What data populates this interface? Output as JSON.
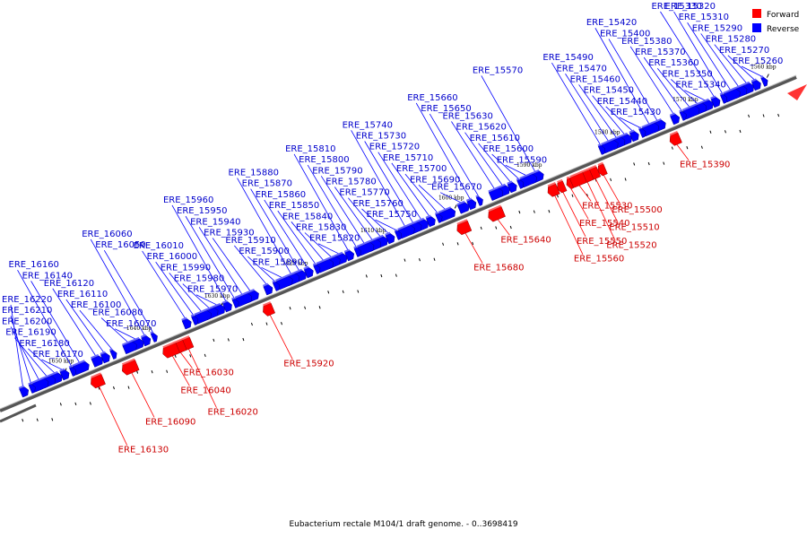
{
  "legend": [
    {
      "label": "Forward",
      "color": "#ff0000"
    },
    {
      "label": "Reverse",
      "color": "#0000ff"
    }
  ],
  "caption": "Eubacterium rectale M104/1 draft genome. - 0..3698419",
  "ticks": [
    {
      "label": "1560 kbp",
      "pos": 1560
    },
    {
      "label": "1570 kbp",
      "pos": 1570
    },
    {
      "label": "1580 kbp",
      "pos": 1580
    },
    {
      "label": "1590 kbp",
      "pos": 1590
    },
    {
      "label": "1600 kbp",
      "pos": 1600
    },
    {
      "label": "1610 kbp",
      "pos": 1610
    },
    {
      "label": "1620 kbp",
      "pos": 1620
    },
    {
      "label": "1630 kbp",
      "pos": 1630
    },
    {
      "label": "1640 kbp",
      "pos": 1640
    },
    {
      "label": "1650 kbp",
      "pos": 1650
    }
  ],
  "genes": [
    {
      "name": "ERE_15260",
      "strand": "reverse"
    },
    {
      "name": "ERE_15270",
      "strand": "reverse"
    },
    {
      "name": "ERE_15280",
      "strand": "reverse"
    },
    {
      "name": "ERE_15290",
      "strand": "reverse"
    },
    {
      "name": "ERE_15310",
      "strand": "reverse"
    },
    {
      "name": "ERE_15320",
      "strand": "reverse"
    },
    {
      "name": "ERE_15330",
      "strand": "reverse"
    },
    {
      "name": "ERE_15340",
      "strand": "reverse"
    },
    {
      "name": "ERE_15350",
      "strand": "reverse"
    },
    {
      "name": "ERE_15360",
      "strand": "reverse"
    },
    {
      "name": "ERE_15370",
      "strand": "reverse"
    },
    {
      "name": "ERE_15380",
      "strand": "reverse"
    },
    {
      "name": "ERE_15390",
      "strand": "forward"
    },
    {
      "name": "ERE_15400",
      "strand": "reverse"
    },
    {
      "name": "ERE_15420",
      "strand": "reverse"
    },
    {
      "name": "ERE_15430",
      "strand": "reverse"
    },
    {
      "name": "ERE_15440",
      "strand": "reverse"
    },
    {
      "name": "ERE_15450",
      "strand": "reverse"
    },
    {
      "name": "ERE_15460",
      "strand": "reverse"
    },
    {
      "name": "ERE_15470",
      "strand": "reverse"
    },
    {
      "name": "ERE_15490",
      "strand": "reverse"
    },
    {
      "name": "ERE_15500",
      "strand": "forward"
    },
    {
      "name": "ERE_15510",
      "strand": "forward"
    },
    {
      "name": "ERE_15520",
      "strand": "forward"
    },
    {
      "name": "ERE_15530",
      "strand": "forward"
    },
    {
      "name": "ERE_15540",
      "strand": "forward"
    },
    {
      "name": "ERE_15550",
      "strand": "forward"
    },
    {
      "name": "ERE_15560",
      "strand": "forward"
    },
    {
      "name": "ERE_15570",
      "strand": "reverse"
    },
    {
      "name": "ERE_15590",
      "strand": "reverse"
    },
    {
      "name": "ERE_15600",
      "strand": "reverse"
    },
    {
      "name": "ERE_15610",
      "strand": "reverse"
    },
    {
      "name": "ERE_15620",
      "strand": "reverse"
    },
    {
      "name": "ERE_15630",
      "strand": "reverse"
    },
    {
      "name": "ERE_15640",
      "strand": "forward"
    },
    {
      "name": "ERE_15650",
      "strand": "reverse"
    },
    {
      "name": "ERE_15660",
      "strand": "reverse"
    },
    {
      "name": "ERE_15670",
      "strand": "reverse"
    },
    {
      "name": "ERE_15680",
      "strand": "forward"
    },
    {
      "name": "ERE_15690",
      "strand": "reverse"
    },
    {
      "name": "ERE_15700",
      "strand": "reverse"
    },
    {
      "name": "ERE_15710",
      "strand": "reverse"
    },
    {
      "name": "ERE_15720",
      "strand": "reverse"
    },
    {
      "name": "ERE_15730",
      "strand": "reverse"
    },
    {
      "name": "ERE_15740",
      "strand": "reverse"
    },
    {
      "name": "ERE_15750",
      "strand": "reverse"
    },
    {
      "name": "ERE_15760",
      "strand": "reverse"
    },
    {
      "name": "ERE_15770",
      "strand": "reverse"
    },
    {
      "name": "ERE_15780",
      "strand": "reverse"
    },
    {
      "name": "ERE_15790",
      "strand": "reverse"
    },
    {
      "name": "ERE_15800",
      "strand": "reverse"
    },
    {
      "name": "ERE_15810",
      "strand": "reverse"
    },
    {
      "name": "ERE_15820",
      "strand": "reverse"
    },
    {
      "name": "ERE_15830",
      "strand": "reverse"
    },
    {
      "name": "ERE_15840",
      "strand": "reverse"
    },
    {
      "name": "ERE_15850",
      "strand": "reverse"
    },
    {
      "name": "ERE_15860",
      "strand": "reverse"
    },
    {
      "name": "ERE_15870",
      "strand": "reverse"
    },
    {
      "name": "ERE_15880",
      "strand": "reverse"
    },
    {
      "name": "ERE_15890",
      "strand": "reverse"
    },
    {
      "name": "ERE_15900",
      "strand": "reverse"
    },
    {
      "name": "ERE_15910",
      "strand": "reverse"
    },
    {
      "name": "ERE_15920",
      "strand": "forward"
    },
    {
      "name": "ERE_15930",
      "strand": "reverse"
    },
    {
      "name": "ERE_15940",
      "strand": "reverse"
    },
    {
      "name": "ERE_15950",
      "strand": "reverse"
    },
    {
      "name": "ERE_15960",
      "strand": "reverse"
    },
    {
      "name": "ERE_15970",
      "strand": "reverse"
    },
    {
      "name": "ERE_15980",
      "strand": "reverse"
    },
    {
      "name": "ERE_15990",
      "strand": "reverse"
    },
    {
      "name": "ERE_16000",
      "strand": "reverse"
    },
    {
      "name": "ERE_16010",
      "strand": "reverse"
    },
    {
      "name": "ERE_16020",
      "strand": "forward"
    },
    {
      "name": "ERE_16030",
      "strand": "forward"
    },
    {
      "name": "ERE_16040",
      "strand": "forward"
    },
    {
      "name": "ERE_16050",
      "strand": "reverse"
    },
    {
      "name": "ERE_16060",
      "strand": "reverse"
    },
    {
      "name": "ERE_16070",
      "strand": "reverse"
    },
    {
      "name": "ERE_16080",
      "strand": "reverse"
    },
    {
      "name": "ERE_16090",
      "strand": "forward"
    },
    {
      "name": "ERE_16100",
      "strand": "reverse"
    },
    {
      "name": "ERE_16110",
      "strand": "reverse"
    },
    {
      "name": "ERE_16120",
      "strand": "reverse"
    },
    {
      "name": "ERE_16130",
      "strand": "forward"
    },
    {
      "name": "ERE_16140",
      "strand": "reverse"
    },
    {
      "name": "ERE_16160",
      "strand": "reverse"
    },
    {
      "name": "ERE_16170",
      "strand": "reverse"
    },
    {
      "name": "ERE_16180",
      "strand": "reverse"
    },
    {
      "name": "ERE_16190",
      "strand": "reverse"
    },
    {
      "name": "ERE_16200",
      "strand": "reverse"
    },
    {
      "name": "ERE_16210",
      "strand": "reverse"
    },
    {
      "name": "ERE_16220",
      "strand": "reverse"
    }
  ]
}
